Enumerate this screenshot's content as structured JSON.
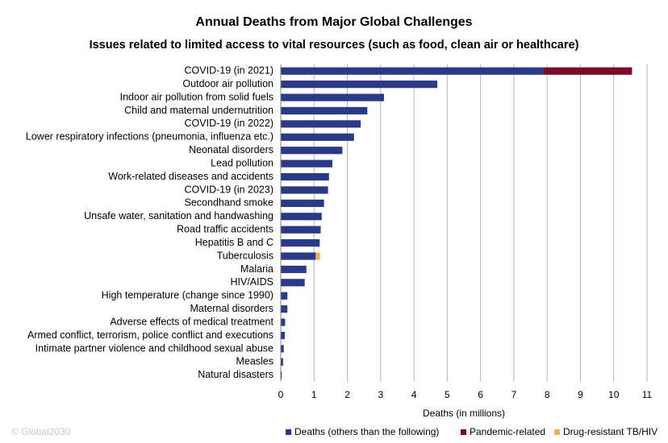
{
  "chart_data": {
    "type": "bar",
    "orientation": "horizontal",
    "stacked": true,
    "title": "Annual Deaths from Major Global Challenges",
    "subtitle": "Issues related to limited access to vital resources (such as food, clean air or healthcare)",
    "xlabel": "Deaths (in millions)",
    "ylabel": "",
    "xlim": [
      0,
      11
    ],
    "xticks": [
      0,
      1,
      2,
      3,
      4,
      5,
      6,
      7,
      8,
      9,
      10,
      11
    ],
    "grid": "vertical",
    "legend_position": "bottom-right",
    "categories": [
      "COVID-19 (in 2021)",
      "Outdoor air pollution",
      "Indoor air pollution from solid fuels",
      "Child and maternal undernutrition",
      "COVID-19 (in 2022)",
      "Lower respiratory infections (pneumonia, influenza etc.)",
      "Neonatal disorders",
      "Lead pollution",
      "Work-related diseases and accidents",
      "COVID-19 (in 2023)",
      "Secondhand smoke",
      "Unsafe water, sanitation and handwashing",
      "Road traffic accidents",
      "Hepatitis B and C",
      "Tuberculosis",
      "Malaria",
      "HIV/AIDS",
      "High temperature (change since 1990)",
      "Maternal disorders",
      "Adverse effects of medical treatment",
      "Armed conflict, terrorism, police conflict and executions",
      "Intimate partner violence and childhood sexual abuse",
      "Measles",
      "Natural disasters"
    ],
    "series": [
      {
        "name": "Deaths (others than the following)",
        "color": "#2b3a86",
        "values": [
          7.9,
          4.7,
          3.1,
          2.6,
          2.4,
          2.2,
          1.85,
          1.55,
          1.45,
          1.42,
          1.3,
          1.23,
          1.2,
          1.17,
          1.05,
          0.77,
          0.72,
          0.2,
          0.2,
          0.13,
          0.12,
          0.09,
          0.07,
          0.03
        ]
      },
      {
        "name": "Pandemic-related",
        "color": "#7a0c2a",
        "values": [
          2.65,
          0,
          0,
          0,
          0,
          0,
          0,
          0,
          0,
          0,
          0,
          0,
          0,
          0,
          0,
          0,
          0,
          0,
          0,
          0,
          0,
          0,
          0,
          0
        ]
      },
      {
        "name": "Drug-resistant TB/HIV",
        "color": "#f5b041",
        "values": [
          0,
          0,
          0,
          0,
          0,
          0,
          0,
          0,
          0,
          0,
          0,
          0,
          0,
          0,
          0.13,
          0,
          0,
          0,
          0,
          0,
          0,
          0,
          0,
          0
        ]
      }
    ]
  },
  "footer": {
    "copyright": "© Global2030"
  }
}
